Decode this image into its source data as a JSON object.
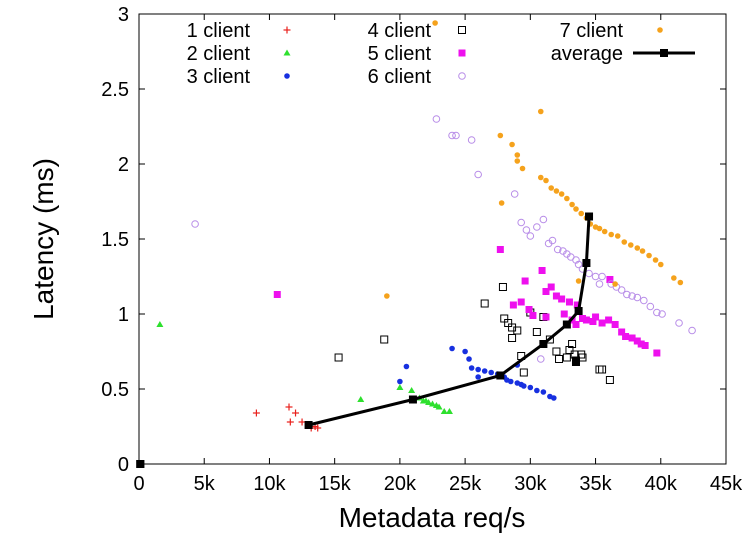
{
  "chart_data": {
    "type": "scatter",
    "title": "",
    "xlabel": "Metadata req/s",
    "ylabel": "Latency (ms)",
    "xlim": [
      0,
      45000
    ],
    "ylim": [
      0,
      3
    ],
    "xticks": [
      0,
      5000,
      10000,
      15000,
      20000,
      25000,
      30000,
      35000,
      40000,
      45000
    ],
    "xtick_labels": [
      "0",
      "5k",
      "10k",
      "15k",
      "20k",
      "25k",
      "30k",
      "35k",
      "40k",
      "45k"
    ],
    "yticks": [
      0,
      0.5,
      1,
      1.5,
      2,
      2.5,
      3
    ],
    "ytick_labels": [
      "0",
      "0.5",
      "1",
      "1.5",
      "2",
      "2.5",
      "3"
    ],
    "grid": false,
    "legend": "top",
    "series": [
      {
        "name": "1 client",
        "marker": "plus",
        "color": "#e8201c",
        "points": [
          [
            100,
            0
          ],
          [
            9000,
            0.34
          ],
          [
            11500,
            0.38
          ],
          [
            12000,
            0.34
          ],
          [
            11600,
            0.28
          ],
          [
            12500,
            0.28
          ],
          [
            13000,
            0.26
          ],
          [
            13200,
            0.24
          ],
          [
            13500,
            0.25
          ],
          [
            13700,
            0.24
          ]
        ]
      },
      {
        "name": "2 client",
        "marker": "triangle",
        "color": "#2ee02e",
        "points": [
          [
            100,
            0
          ],
          [
            1600,
            0.93
          ],
          [
            17000,
            0.43
          ],
          [
            20000,
            0.51
          ],
          [
            20900,
            0.49
          ],
          [
            21500,
            0.44
          ],
          [
            21800,
            0.42
          ],
          [
            22000,
            0.42
          ],
          [
            22200,
            0.41
          ],
          [
            22500,
            0.4
          ],
          [
            22800,
            0.39
          ],
          [
            23000,
            0.38
          ],
          [
            23400,
            0.35
          ],
          [
            23800,
            0.35
          ]
        ]
      },
      {
        "name": "3 client",
        "marker": "dot",
        "color": "#1730e0",
        "points": [
          [
            100,
            0
          ],
          [
            20500,
            0.65
          ],
          [
            20000,
            0.55
          ],
          [
            24000,
            0.77
          ],
          [
            25000,
            0.75
          ],
          [
            25300,
            0.7
          ],
          [
            25500,
            0.64
          ],
          [
            26000,
            0.63
          ],
          [
            26500,
            0.62
          ],
          [
            27000,
            0.61
          ],
          [
            27500,
            0.6
          ],
          [
            28000,
            0.58
          ],
          [
            28200,
            0.56
          ],
          [
            28500,
            0.55
          ],
          [
            29000,
            0.54
          ],
          [
            29300,
            0.53
          ],
          [
            29500,
            0.52
          ],
          [
            30000,
            0.51
          ],
          [
            30500,
            0.49
          ],
          [
            31000,
            0.48
          ],
          [
            31500,
            0.45
          ],
          [
            31800,
            0.44
          ],
          [
            29000,
            0.66
          ],
          [
            26000,
            0.58
          ]
        ]
      },
      {
        "name": "4 client",
        "marker": "open-square",
        "color": "#000000",
        "points": [
          [
            100,
            0
          ],
          [
            15300,
            0.71
          ],
          [
            18800,
            0.83
          ],
          [
            26500,
            1.07
          ],
          [
            27900,
            1.18
          ],
          [
            28000,
            0.97
          ],
          [
            28300,
            0.94
          ],
          [
            28600,
            0.91
          ],
          [
            29000,
            0.89
          ],
          [
            29300,
            0.72
          ],
          [
            28600,
            0.84
          ],
          [
            29500,
            0.61
          ],
          [
            30000,
            1.01
          ],
          [
            30500,
            0.88
          ],
          [
            31500,
            0.83
          ],
          [
            32000,
            0.75
          ],
          [
            32200,
            0.7
          ],
          [
            32800,
            0.71
          ],
          [
            33000,
            0.76
          ],
          [
            33200,
            0.8
          ],
          [
            33400,
            0.73
          ],
          [
            33500,
            0.69
          ],
          [
            33900,
            0.73
          ],
          [
            34000,
            0.71
          ],
          [
            35300,
            0.63
          ],
          [
            35500,
            0.63
          ],
          [
            36100,
            0.56
          ],
          [
            31000,
            0.98
          ]
        ]
      },
      {
        "name": "5 client",
        "marker": "filled-square",
        "color": "#ee10ee",
        "points": [
          [
            100,
            0
          ],
          [
            10600,
            1.13
          ],
          [
            27700,
            1.43
          ],
          [
            28700,
            1.06
          ],
          [
            29300,
            1.08
          ],
          [
            29900,
            1.03
          ],
          [
            31200,
            0.98
          ],
          [
            30200,
            0.99
          ],
          [
            29600,
            1.22
          ],
          [
            30900,
            1.29
          ],
          [
            31200,
            1.15
          ],
          [
            31600,
            1.18
          ],
          [
            32000,
            1.12
          ],
          [
            32400,
            1.1
          ],
          [
            33000,
            1.08
          ],
          [
            33600,
            1.06
          ],
          [
            33200,
            0.96
          ],
          [
            33500,
            0.93
          ],
          [
            34000,
            0.97
          ],
          [
            34300,
            0.96
          ],
          [
            34800,
            0.95
          ],
          [
            35000,
            0.98
          ],
          [
            35500,
            0.94
          ],
          [
            36000,
            0.96
          ],
          [
            36500,
            0.93
          ],
          [
            37000,
            0.88
          ],
          [
            37300,
            0.85
          ],
          [
            37800,
            0.84
          ],
          [
            38200,
            0.82
          ],
          [
            38500,
            0.8
          ],
          [
            38800,
            0.79
          ],
          [
            39700,
            0.74
          ],
          [
            36100,
            1.23
          ],
          [
            32600,
            1.0
          ]
        ]
      },
      {
        "name": "6 client",
        "marker": "open-circle",
        "color": "#b88de8",
        "points": [
          [
            100,
            0
          ],
          [
            4300,
            1.6
          ],
          [
            22800,
            2.3
          ],
          [
            24000,
            2.19
          ],
          [
            24300,
            2.19
          ],
          [
            25500,
            2.16
          ],
          [
            26000,
            1.93
          ],
          [
            28800,
            1.8
          ],
          [
            29300,
            1.61
          ],
          [
            29700,
            1.56
          ],
          [
            30000,
            1.52
          ],
          [
            30500,
            1.58
          ],
          [
            31000,
            1.63
          ],
          [
            31400,
            1.47
          ],
          [
            31700,
            1.49
          ],
          [
            32100,
            1.43
          ],
          [
            32500,
            1.42
          ],
          [
            32800,
            1.4
          ],
          [
            33100,
            1.38
          ],
          [
            33500,
            1.36
          ],
          [
            33700,
            1.33
          ],
          [
            34000,
            1.3
          ],
          [
            34500,
            1.27
          ],
          [
            35000,
            1.25
          ],
          [
            35300,
            1.2
          ],
          [
            35500,
            1.25
          ],
          [
            36200,
            1.2
          ],
          [
            36600,
            1.18
          ],
          [
            37000,
            1.16
          ],
          [
            37400,
            1.13
          ],
          [
            37800,
            1.12
          ],
          [
            38200,
            1.11
          ],
          [
            38700,
            1.09
          ],
          [
            39200,
            1.05
          ],
          [
            39700,
            1.01
          ],
          [
            40100,
            1.0
          ],
          [
            41400,
            0.94
          ],
          [
            42400,
            0.89
          ],
          [
            30800,
            0.7
          ]
        ]
      },
      {
        "name": "7 client",
        "marker": "dot",
        "color": "#f5a21c",
        "points": [
          [
            100,
            0
          ],
          [
            19000,
            1.12
          ],
          [
            22700,
            2.94
          ],
          [
            27700,
            2.19
          ],
          [
            28600,
            2.13
          ],
          [
            29000,
            2.06
          ],
          [
            29000,
            2.02
          ],
          [
            29400,
            1.97
          ],
          [
            27800,
            1.74
          ],
          [
            30800,
            2.35
          ],
          [
            30800,
            1.91
          ],
          [
            31200,
            1.89
          ],
          [
            31600,
            1.84
          ],
          [
            32000,
            1.82
          ],
          [
            32400,
            1.8
          ],
          [
            32800,
            1.77
          ],
          [
            33200,
            1.73
          ],
          [
            33500,
            1.7
          ],
          [
            33900,
            1.67
          ],
          [
            34300,
            1.64
          ],
          [
            34600,
            1.6
          ],
          [
            35000,
            1.58
          ],
          [
            35300,
            1.57
          ],
          [
            35700,
            1.55
          ],
          [
            36200,
            1.53
          ],
          [
            36700,
            1.52
          ],
          [
            37200,
            1.48
          ],
          [
            37700,
            1.46
          ],
          [
            38200,
            1.44
          ],
          [
            38600,
            1.42
          ],
          [
            39100,
            1.39
          ],
          [
            39600,
            1.36
          ],
          [
            40000,
            1.33
          ],
          [
            41000,
            1.24
          ],
          [
            41500,
            1.21
          ],
          [
            33700,
            1.22
          ],
          [
            36500,
            1.2
          ]
        ]
      }
    ],
    "average": {
      "name": "average",
      "marker": "filled-square-line",
      "color": "#000000",
      "points": [
        [
          100,
          0
        ],
        [
          13000,
          0.26
        ],
        [
          21000,
          0.43
        ],
        [
          27700,
          0.59
        ],
        [
          31000,
          0.8
        ],
        [
          32800,
          0.93
        ],
        [
          33700,
          1.02
        ],
        [
          34300,
          1.34
        ],
        [
          34500,
          1.65
        ],
        [
          33500,
          0.68
        ]
      ]
    }
  }
}
